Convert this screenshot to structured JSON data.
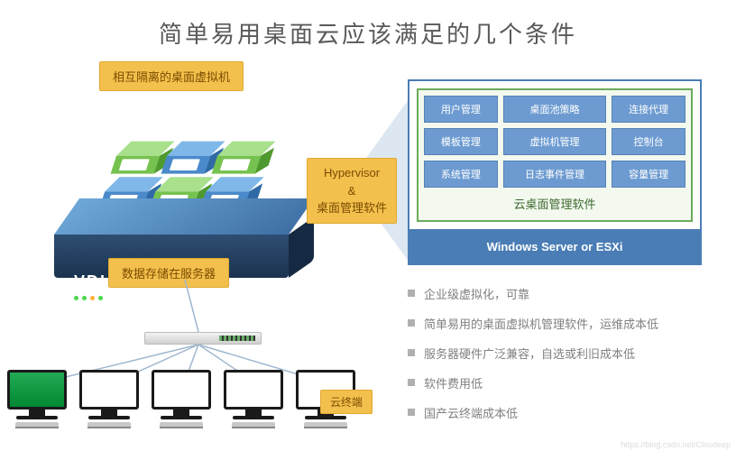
{
  "title": "简单易用桌面云应该满足的几个条件",
  "labels": {
    "vms": "相互隔离的桌面虚拟机",
    "hypervisor_line1": "Hypervisor",
    "hypervisor_line2": "&",
    "hypervisor_line3": "桌面管理软件",
    "storage": "数据存储在服务器",
    "terminal": "云终端",
    "vdi": "VDI"
  },
  "label_style": {
    "bg": "#f4c04d",
    "border": "#e0a830",
    "text": "#7a4c00",
    "fontsize": 13
  },
  "server": {
    "top_color_a": "#6ea8d8",
    "top_color_b": "#3f6fa5",
    "front_color_a": "#2e4e72",
    "front_color_b": "#1b3350",
    "side_color": "#152a42",
    "led_colors": [
      "#4ad74a",
      "#4ad74a",
      "#ffb03a",
      "#4ad74a"
    ]
  },
  "vm_colors": {
    "blue": {
      "top": "#7fb8e8",
      "front": "#4a8acb",
      "side": "#2f6aa6"
    },
    "green": {
      "top": "#a8e08c",
      "front": "#76c24f",
      "side": "#4f9a2e"
    }
  },
  "vm_layout": [
    "green",
    "blue",
    "green",
    "blue",
    "green",
    "blue",
    "green",
    "blue",
    "green"
  ],
  "terminals": [
    {
      "bg": "linear-gradient(#2a5,#083)",
      "desc": "scenic"
    },
    {
      "bg": "#ffffff",
      "desc": "dashboard"
    },
    {
      "bg": "#ffffff",
      "desc": "profile"
    },
    {
      "bg": "#ffffff",
      "desc": "document"
    },
    {
      "bg": "#ffffff",
      "desc": "video-call"
    }
  ],
  "panel": {
    "border": "#4a7db5",
    "mgmt_border": "#6aab5a",
    "mgmt_bg": "#f3f9ef",
    "module_bg": "#6d9bd1",
    "module_border": "#5682b5",
    "module_text": "#ffffff",
    "hyper_bg": "#4a7db5",
    "mgmt_title": "云桌面管理软件",
    "hyper_label": "Windows Server or ESXi",
    "modules": [
      "用户管理",
      "桌面池策略",
      "连接代理",
      "模板管理",
      "虚拟机管理",
      "控制台",
      "系统管理",
      "日志事件管理",
      "容量管理"
    ]
  },
  "bullets": [
    "企业级虚拟化，可靠",
    "简单易用的桌面虚拟机管理软件，运维成本低",
    "服务器硬件广泛兼容，自选或利旧成本低",
    "软件费用低",
    "国产云终端成本低"
  ],
  "watermark": "https://blog.csdn.net/Cloudeep",
  "net_line_color": "#9fb7cf"
}
